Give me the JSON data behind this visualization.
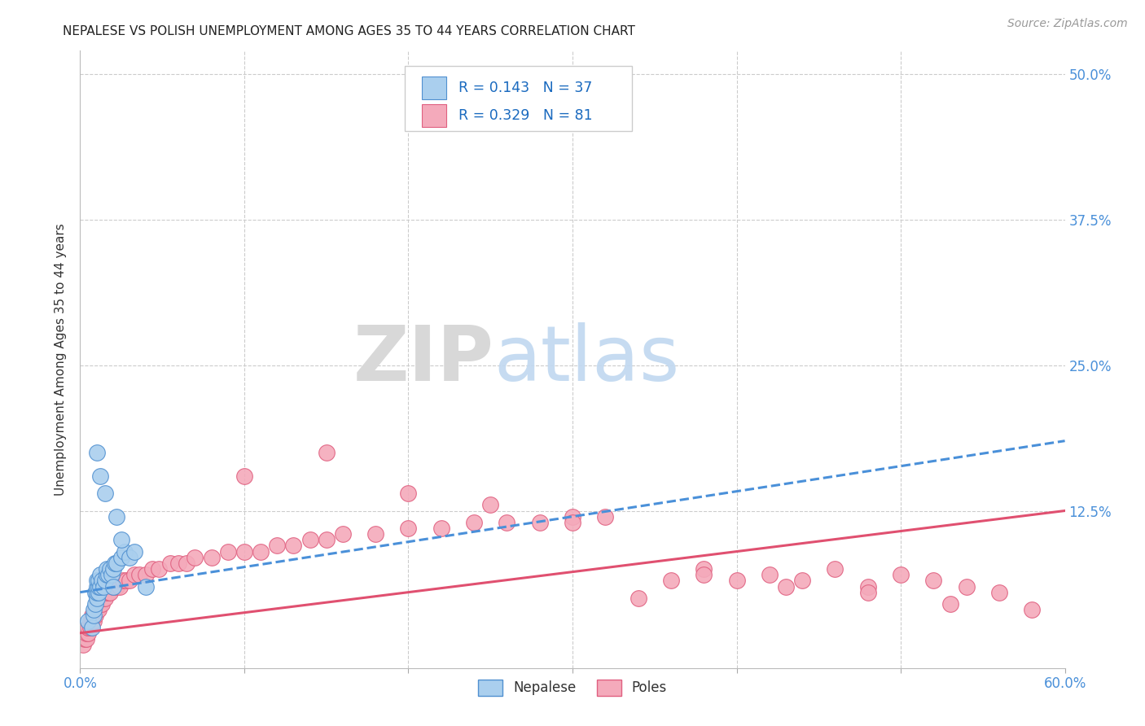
{
  "title": "NEPALESE VS POLISH UNEMPLOYMENT AMONG AGES 35 TO 44 YEARS CORRELATION CHART",
  "source": "Source: ZipAtlas.com",
  "ylabel": "Unemployment Among Ages 35 to 44 years",
  "xlim": [
    0.0,
    0.6
  ],
  "ylim": [
    -0.01,
    0.52
  ],
  "xticks": [
    0.0,
    0.1,
    0.2,
    0.3,
    0.4,
    0.5,
    0.6
  ],
  "yticks": [
    0.0,
    0.125,
    0.25,
    0.375,
    0.5
  ],
  "yticklabels": [
    "",
    "12.5%",
    "25.0%",
    "37.5%",
    "50.0%"
  ],
  "grid_color": "#cccccc",
  "bg_color": "#ffffff",
  "nepalese_color": "#aacfee",
  "nepalese_edge": "#5090d0",
  "polish_color": "#f4aabb",
  "polish_edge": "#e06080",
  "nepalese_R": 0.143,
  "nepalese_N": 37,
  "polish_R": 0.329,
  "polish_N": 81,
  "nep_trend_x0": 0.0,
  "nep_trend_y0": 0.055,
  "nep_trend_x1": 0.6,
  "nep_trend_y1": 0.185,
  "pol_trend_x0": 0.0,
  "pol_trend_y0": 0.02,
  "pol_trend_x1": 0.6,
  "pol_trend_y1": 0.125,
  "nepalese_x": [
    0.005,
    0.007,
    0.008,
    0.008,
    0.009,
    0.009,
    0.01,
    0.01,
    0.01,
    0.01,
    0.011,
    0.011,
    0.011,
    0.012,
    0.012,
    0.013,
    0.014,
    0.015,
    0.016,
    0.016,
    0.017,
    0.018,
    0.019,
    0.02,
    0.021,
    0.022,
    0.025,
    0.027,
    0.03,
    0.033,
    0.01,
    0.012,
    0.015,
    0.02,
    0.04,
    0.022,
    0.025
  ],
  "nepalese_y": [
    0.03,
    0.025,
    0.035,
    0.04,
    0.045,
    0.055,
    0.05,
    0.055,
    0.06,
    0.065,
    0.055,
    0.06,
    0.065,
    0.06,
    0.07,
    0.065,
    0.06,
    0.065,
    0.07,
    0.075,
    0.07,
    0.075,
    0.07,
    0.075,
    0.08,
    0.08,
    0.085,
    0.09,
    0.085,
    0.09,
    0.175,
    0.155,
    0.14,
    0.06,
    0.06,
    0.12,
    0.1
  ],
  "polish_x": [
    0.002,
    0.003,
    0.004,
    0.004,
    0.005,
    0.005,
    0.005,
    0.006,
    0.006,
    0.007,
    0.007,
    0.008,
    0.008,
    0.009,
    0.009,
    0.01,
    0.01,
    0.011,
    0.011,
    0.012,
    0.012,
    0.013,
    0.014,
    0.015,
    0.016,
    0.017,
    0.018,
    0.02,
    0.022,
    0.024,
    0.026,
    0.028,
    0.03,
    0.033,
    0.036,
    0.04,
    0.044,
    0.048,
    0.055,
    0.06,
    0.065,
    0.07,
    0.08,
    0.09,
    0.1,
    0.11,
    0.12,
    0.13,
    0.14,
    0.15,
    0.16,
    0.18,
    0.2,
    0.22,
    0.24,
    0.26,
    0.28,
    0.3,
    0.32,
    0.34,
    0.36,
    0.38,
    0.4,
    0.42,
    0.44,
    0.46,
    0.48,
    0.5,
    0.52,
    0.54,
    0.56,
    0.1,
    0.15,
    0.2,
    0.25,
    0.3,
    0.38,
    0.43,
    0.48,
    0.53,
    0.58
  ],
  "polish_y": [
    0.01,
    0.015,
    0.015,
    0.02,
    0.02,
    0.025,
    0.025,
    0.025,
    0.03,
    0.03,
    0.035,
    0.03,
    0.035,
    0.035,
    0.04,
    0.04,
    0.045,
    0.04,
    0.045,
    0.045,
    0.05,
    0.045,
    0.05,
    0.05,
    0.055,
    0.055,
    0.055,
    0.06,
    0.06,
    0.06,
    0.065,
    0.065,
    0.065,
    0.07,
    0.07,
    0.07,
    0.075,
    0.075,
    0.08,
    0.08,
    0.08,
    0.085,
    0.085,
    0.09,
    0.09,
    0.09,
    0.095,
    0.095,
    0.1,
    0.1,
    0.105,
    0.105,
    0.11,
    0.11,
    0.115,
    0.115,
    0.115,
    0.12,
    0.12,
    0.05,
    0.065,
    0.075,
    0.065,
    0.07,
    0.065,
    0.075,
    0.06,
    0.07,
    0.065,
    0.06,
    0.055,
    0.155,
    0.175,
    0.14,
    0.13,
    0.115,
    0.07,
    0.06,
    0.055,
    0.045,
    0.04
  ],
  "watermark_zip": "ZIP",
  "watermark_atlas": "atlas",
  "legend_label_nepalese": "Nepalese",
  "legend_label_polish": "Poles",
  "title_fontsize": 11,
  "tick_fontsize": 12,
  "legend_fontsize": 12
}
